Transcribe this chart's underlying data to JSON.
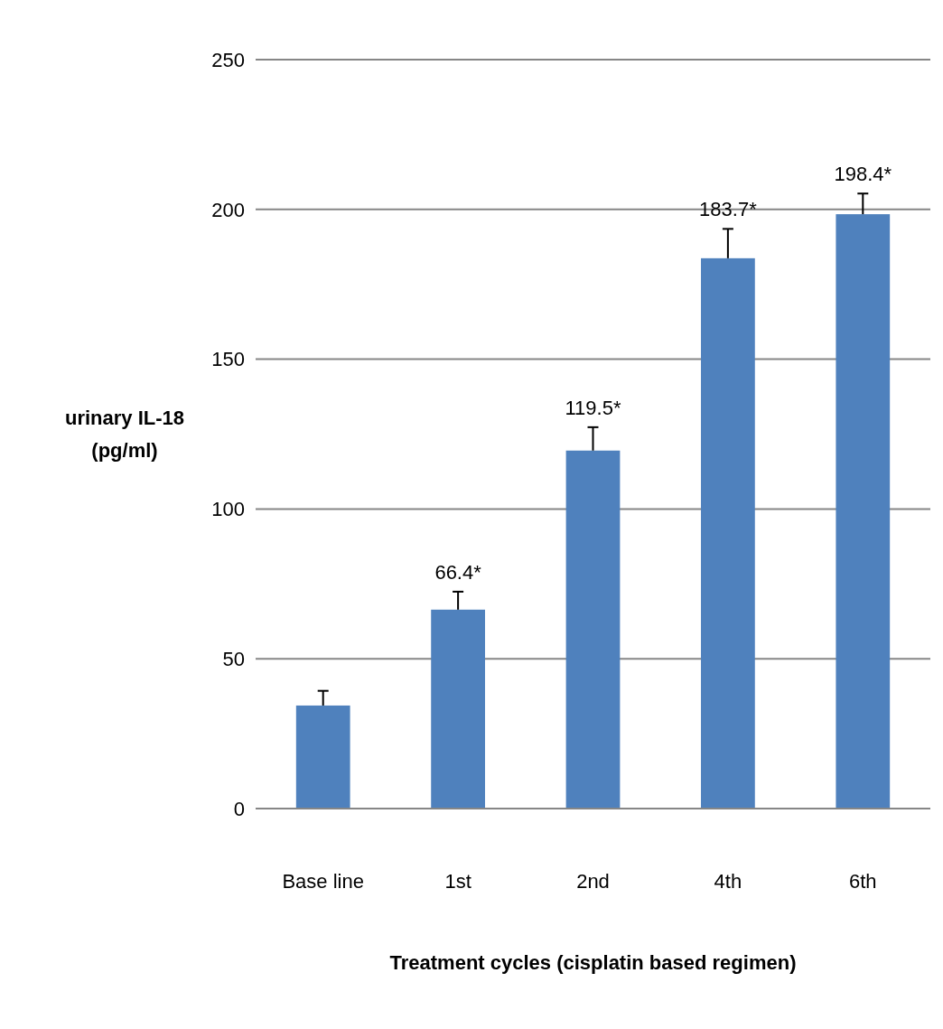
{
  "chart_data": {
    "type": "bar",
    "xlabel": "Treatment cycles (cisplatin  based regimen)",
    "ylabel": "urinary IL-18\n(pg/ml)",
    "categories": [
      "Base line",
      "1st",
      "2nd",
      "4th",
      "6th"
    ],
    "values": [
      34.4,
      66.4,
      119.5,
      183.7,
      198.4
    ],
    "errors": [
      [
        34.4,
        39.3
      ],
      [
        66.4,
        72.4
      ],
      [
        119.5,
        127.3
      ],
      [
        183.7,
        193.5
      ],
      [
        198.4,
        205.3
      ]
    ],
    "value_labels": [
      null,
      "66.4*",
      "119.5*",
      "183.7*",
      "198.4*"
    ],
    "color": "#4f81bd",
    "ylim": [
      0,
      250
    ],
    "yticks": [
      0,
      50,
      100,
      150,
      200,
      250
    ],
    "grid": "y"
  }
}
